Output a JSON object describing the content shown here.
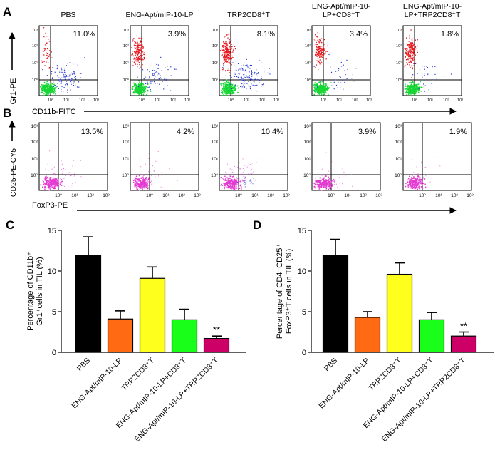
{
  "panels": {
    "A": "A",
    "B": "B",
    "C": "C",
    "D": "D"
  },
  "row_a": {
    "y_axis_label": "Gr1-PE",
    "x_axis_label": "CD11b-FITC",
    "plots": [
      {
        "title": [
          "PBS"
        ],
        "percent": "11.0%"
      },
      {
        "title": [
          "ENG-Apt/mIP-10-LP"
        ],
        "percent": "3.9%"
      },
      {
        "title": [
          "TRP2CD8⁺T"
        ],
        "percent": "8.1%"
      },
      {
        "title": [
          "ENG-Apt/mIP-10-",
          "LP+CD8⁺T"
        ],
        "percent": "3.4%"
      },
      {
        "title": [
          "ENG-Apt/mIP-10-",
          "LP+TRP2CD8⁺T"
        ],
        "percent": "1.8%"
      }
    ]
  },
  "row_b": {
    "y_axis_label": "CD25-PE-CY5",
    "x_axis_label": "FoxP3-PE",
    "plots": [
      {
        "percent": "13.5%"
      },
      {
        "percent": "4.2%"
      },
      {
        "percent": "10.4%"
      },
      {
        "percent": "3.9%"
      },
      {
        "percent": "1.9%"
      }
    ]
  },
  "flow_ticks": {
    "y": [
      "10³",
      "10²",
      "10¹",
      "10⁰"
    ],
    "x": [
      "10⁰",
      "10¹",
      "10²",
      "10³"
    ]
  },
  "colors": {
    "bar_black": "#000000",
    "bar_orange": "#ff6a13",
    "bar_yellow": "#ffff1e",
    "bar_green": "#19ff19",
    "bar_magenta": "#cc0066",
    "dot_red": "#e8141c",
    "dot_blue": "#2a3bd9",
    "dot_green": "#16d633",
    "dot_pink": "#e33ad1"
  },
  "chart_data": [
    {
      "type": "bar",
      "panel": "C",
      "ylabel": [
        "Percentage of CD11b⁺",
        "Gr1⁺cells in TIL (%)"
      ],
      "ylim": [
        0,
        15
      ],
      "yticks": [
        "0",
        "5",
        "10",
        "15"
      ],
      "categories": [
        "PBS",
        "ENG-Apt/mIP-10-LP",
        "TRP2CD8⁺T",
        "ENG-Apt/mIP-10-LP+CD8⁺T",
        "ENG-Apt/mIP-10-LP+TRP2CD8⁺T"
      ],
      "values": [
        11.9,
        4.1,
        9.1,
        4.0,
        1.7
      ],
      "errors": [
        2.3,
        1.0,
        1.4,
        1.3,
        0.3
      ],
      "colors": [
        "#000000",
        "#ff6a13",
        "#ffff1e",
        "#19ff19",
        "#cc0066"
      ],
      "annotations": [
        "",
        "",
        "",
        "",
        "**"
      ]
    },
    {
      "type": "bar",
      "panel": "D",
      "ylabel": [
        "Percentage of CD4⁺CD25⁺",
        "FoxP3⁺T cells in TIL (%)"
      ],
      "ylim": [
        0,
        15
      ],
      "yticks": [
        "0",
        "5",
        "10",
        "15"
      ],
      "categories": [
        "PBS",
        "ENG-Apt/mIP-10-LP",
        "TRP2CD8⁺T",
        "ENG-Apt/mIP-10-LP+CD8⁺T",
        "ENG-Apt/mIP-10-LP+TRP2CD8⁺T"
      ],
      "values": [
        11.9,
        4.3,
        9.6,
        4.0,
        2.0
      ],
      "errors": [
        2.0,
        0.7,
        1.4,
        0.9,
        0.5
      ],
      "colors": [
        "#000000",
        "#ff6a13",
        "#ffff1e",
        "#19ff19",
        "#cc0066"
      ],
      "annotations": [
        "",
        "",
        "",
        "",
        "**"
      ]
    }
  ]
}
